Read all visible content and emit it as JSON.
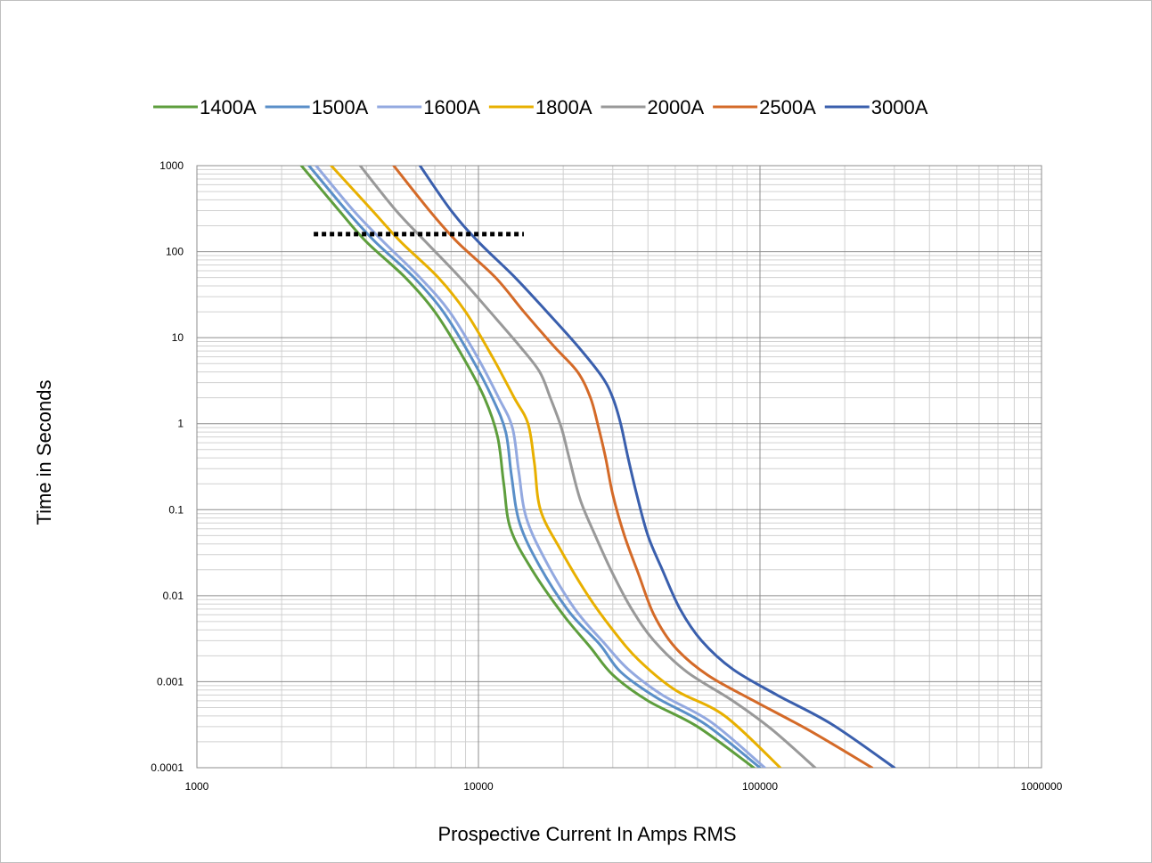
{
  "chart_data": {
    "type": "line",
    "x_scale": "log",
    "y_scale": "log",
    "xlabel": "Prospective Current In Amps RMS",
    "ylabel": "Time in Seconds",
    "xlim": [
      1000,
      1000000
    ],
    "ylim": [
      0.0001,
      1000
    ],
    "x_tick_labels": [
      "1000",
      "10000",
      "100000",
      "1000000"
    ],
    "y_tick_labels": [
      "1000",
      "100",
      "10",
      "1",
      "0.1",
      "0.01",
      "0.001",
      "0.0001"
    ],
    "grid": "major and minor",
    "legend_position": "top",
    "series": [
      {
        "name": "1400A",
        "color": "#5e9e3d",
        "points": [
          [
            2350,
            1000
          ],
          [
            3200,
            300
          ],
          [
            4000,
            130
          ],
          [
            5500,
            50
          ],
          [
            7000,
            20
          ],
          [
            8800,
            6
          ],
          [
            10500,
            2
          ],
          [
            11700,
            0.7
          ],
          [
            12300,
            0.2
          ],
          [
            13000,
            0.06
          ],
          [
            15500,
            0.02
          ],
          [
            20000,
            0.006
          ],
          [
            25000,
            0.0025
          ],
          [
            30000,
            0.0012
          ],
          [
            40000,
            0.0006
          ],
          [
            60000,
            0.0003
          ],
          [
            95000,
            0.0001
          ]
        ]
      },
      {
        "name": "1500A",
        "color": "#5a8fc8",
        "points": [
          [
            2500,
            1000
          ],
          [
            3400,
            300
          ],
          [
            4300,
            130
          ],
          [
            5900,
            50
          ],
          [
            7500,
            20
          ],
          [
            9400,
            6
          ],
          [
            11200,
            2
          ],
          [
            12500,
            0.8
          ],
          [
            13100,
            0.25
          ],
          [
            14000,
            0.07
          ],
          [
            16500,
            0.022
          ],
          [
            21000,
            0.0065
          ],
          [
            27000,
            0.0027
          ],
          [
            32000,
            0.0013
          ],
          [
            43000,
            0.00065
          ],
          [
            64000,
            0.00032
          ],
          [
            100000,
            0.0001
          ]
        ]
      },
      {
        "name": "1600A",
        "color": "#93a9e0",
        "points": [
          [
            2650,
            1000
          ],
          [
            3600,
            300
          ],
          [
            4600,
            130
          ],
          [
            6200,
            50
          ],
          [
            7900,
            20
          ],
          [
            9900,
            6
          ],
          [
            11800,
            2
          ],
          [
            13200,
            0.9
          ],
          [
            13900,
            0.28
          ],
          [
            14800,
            0.08
          ],
          [
            17500,
            0.024
          ],
          [
            22000,
            0.007
          ],
          [
            28000,
            0.0028
          ],
          [
            34000,
            0.0014
          ],
          [
            45000,
            0.0007
          ],
          [
            67000,
            0.00034
          ],
          [
            104000,
            0.0001
          ]
        ]
      },
      {
        "name": "1800A",
        "color": "#e8b000",
        "points": [
          [
            3000,
            1000
          ],
          [
            4200,
            300
          ],
          [
            5300,
            130
          ],
          [
            7200,
            50
          ],
          [
            9000,
            20
          ],
          [
            11200,
            6
          ],
          [
            13400,
            2
          ],
          [
            15000,
            1
          ],
          [
            15800,
            0.35
          ],
          [
            16600,
            0.1
          ],
          [
            19500,
            0.035
          ],
          [
            24500,
            0.01
          ],
          [
            30000,
            0.004
          ],
          [
            37000,
            0.0018
          ],
          [
            50000,
            0.0008
          ],
          [
            75000,
            0.0004
          ],
          [
            118000,
            0.0001
          ]
        ]
      },
      {
        "name": "2000A",
        "color": "#999999",
        "points": [
          [
            3800,
            1000
          ],
          [
            5100,
            300
          ],
          [
            6500,
            130
          ],
          [
            8600,
            50
          ],
          [
            11000,
            20
          ],
          [
            14000,
            8
          ],
          [
            16500,
            4
          ],
          [
            18000,
            2
          ],
          [
            19700,
            0.9
          ],
          [
            21000,
            0.4
          ],
          [
            23000,
            0.13
          ],
          [
            26000,
            0.05
          ],
          [
            30000,
            0.018
          ],
          [
            35000,
            0.007
          ],
          [
            42000,
            0.003
          ],
          [
            55000,
            0.0013
          ],
          [
            80000,
            0.0006
          ],
          [
            110000,
            0.00028
          ],
          [
            157000,
            0.0001
          ]
        ]
      },
      {
        "name": "2500A",
        "color": "#d46a28",
        "points": [
          [
            5000,
            1000
          ],
          [
            6700,
            300
          ],
          [
            8400,
            130
          ],
          [
            11500,
            50
          ],
          [
            14500,
            20
          ],
          [
            18500,
            8
          ],
          [
            22500,
            4
          ],
          [
            25000,
            2
          ],
          [
            26500,
            1
          ],
          [
            28300,
            0.4
          ],
          [
            30000,
            0.15
          ],
          [
            33000,
            0.05
          ],
          [
            37000,
            0.018
          ],
          [
            42000,
            0.006
          ],
          [
            50000,
            0.0025
          ],
          [
            65000,
            0.0012
          ],
          [
            95000,
            0.0006
          ],
          [
            150000,
            0.00027
          ],
          [
            250000,
            0.0001
          ]
        ]
      },
      {
        "name": "3000A",
        "color": "#3a5fad",
        "points": [
          [
            6200,
            1000
          ],
          [
            8000,
            300
          ],
          [
            10000,
            130
          ],
          [
            13500,
            50
          ],
          [
            17500,
            20
          ],
          [
            22500,
            8
          ],
          [
            27500,
            3.5
          ],
          [
            30000,
            2
          ],
          [
            32000,
            1
          ],
          [
            34000,
            0.4
          ],
          [
            36500,
            0.15
          ],
          [
            40000,
            0.05
          ],
          [
            45000,
            0.02
          ],
          [
            52000,
            0.007
          ],
          [
            62000,
            0.003
          ],
          [
            80000,
            0.0014
          ],
          [
            115000,
            0.0007
          ],
          [
            180000,
            0.00032
          ],
          [
            300000,
            0.0001
          ]
        ]
      }
    ],
    "reference_line": {
      "style": "dotted",
      "color": "#000000",
      "y": 160,
      "x_start": 2600,
      "x_end": 14500
    }
  }
}
